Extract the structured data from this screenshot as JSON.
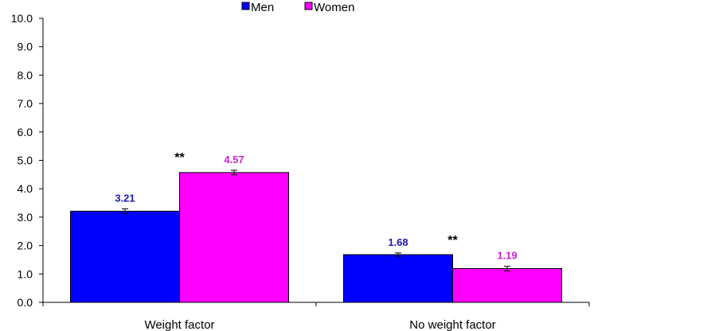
{
  "chart_data": {
    "type": "bar",
    "title": "",
    "xlabel": "",
    "ylabel": "",
    "ylim": [
      0,
      10
    ],
    "yticks": [
      "0.0",
      "1.0",
      "2.0",
      "3.0",
      "4.0",
      "5.0",
      "6.0",
      "7.0",
      "8.0",
      "9.0",
      "10.0"
    ],
    "categories": [
      "Weight factor",
      "No weight factor"
    ],
    "series": [
      {
        "name": "Men",
        "values": [
          3.21,
          1.68
        ],
        "labels": [
          "3.21",
          "1.68"
        ],
        "errors": [
          0.08,
          0.06
        ],
        "color": "#0000ff",
        "label_color": "#1a1aaa"
      },
      {
        "name": "Women",
        "values": [
          4.57,
          1.19
        ],
        "labels": [
          "4.57",
          "1.19"
        ],
        "errors": [
          0.08,
          0.08
        ],
        "color": "#ff00ff",
        "label_color": "#cc22cc"
      }
    ],
    "significance": [
      "**",
      "**"
    ],
    "legend_position": "top",
    "grid": false
  }
}
